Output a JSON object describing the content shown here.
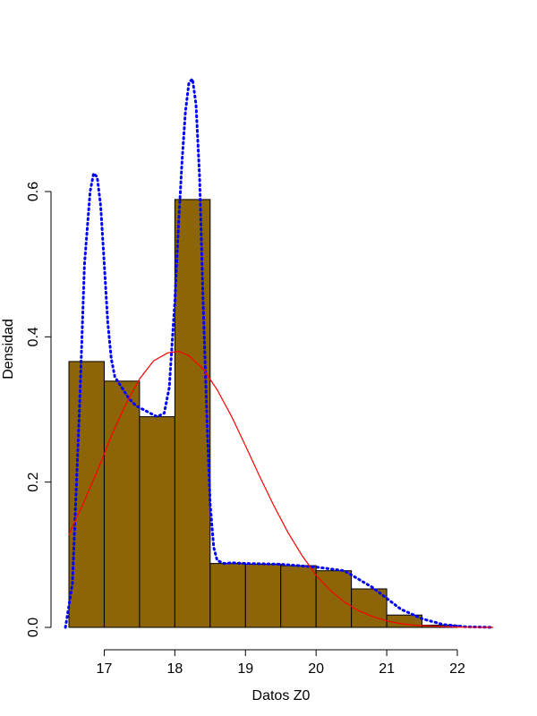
{
  "chart_data": {
    "type": "bar",
    "title": "",
    "xlabel": "Datos Z0",
    "ylabel": "Densidad",
    "xlim": [
      16.4,
      22.5
    ],
    "ylim": [
      0,
      0.75
    ],
    "x_ticks": [
      17,
      18,
      19,
      20,
      21,
      22
    ],
    "y_ticks": [
      0.0,
      0.2,
      0.4,
      0.6
    ],
    "y_tick_labels": [
      "0.0",
      "0.2",
      "0.4",
      "0.6"
    ],
    "grid": false,
    "legend": null,
    "bins": [
      {
        "x0": 16.5,
        "x1": 17.0,
        "density": 0.366
      },
      {
        "x0": 17.0,
        "x1": 17.5,
        "density": 0.339
      },
      {
        "x0": 17.5,
        "x1": 18.0,
        "density": 0.29
      },
      {
        "x0": 18.0,
        "x1": 18.5,
        "density": 0.589
      },
      {
        "x0": 18.5,
        "x1": 19.0,
        "density": 0.088
      },
      {
        "x0": 19.0,
        "x1": 19.5,
        "density": 0.087
      },
      {
        "x0": 19.5,
        "x1": 20.0,
        "density": 0.085
      },
      {
        "x0": 20.0,
        "x1": 20.5,
        "density": 0.078
      },
      {
        "x0": 20.5,
        "x1": 21.0,
        "density": 0.053
      },
      {
        "x0": 21.0,
        "x1": 21.5,
        "density": 0.017
      },
      {
        "x0": 21.5,
        "x1": 22.0,
        "density": 0.003
      }
    ],
    "series": [
      {
        "style": "dotted",
        "color": "#0000ff",
        "x": [
          16.45,
          16.55,
          16.65,
          16.72,
          16.8,
          16.85,
          16.9,
          16.95,
          17.0,
          17.05,
          17.1,
          17.15,
          17.25,
          17.35,
          17.45,
          17.55,
          17.65,
          17.75,
          17.85,
          17.92,
          18.0,
          18.05,
          18.1,
          18.15,
          18.2,
          18.25,
          18.3,
          18.35,
          18.4,
          18.45,
          18.5,
          18.55,
          18.6,
          18.7,
          18.8,
          19.0,
          19.5,
          20.0,
          20.4,
          20.8,
          21.2,
          21.5,
          21.8,
          22.1,
          22.5
        ],
        "y": [
          0.0,
          0.06,
          0.3,
          0.5,
          0.6,
          0.625,
          0.62,
          0.58,
          0.5,
          0.42,
          0.37,
          0.345,
          0.33,
          0.315,
          0.305,
          0.3,
          0.295,
          0.29,
          0.295,
          0.33,
          0.45,
          0.55,
          0.64,
          0.71,
          0.75,
          0.755,
          0.72,
          0.62,
          0.45,
          0.3,
          0.17,
          0.11,
          0.092,
          0.088,
          0.089,
          0.088,
          0.087,
          0.083,
          0.078,
          0.055,
          0.025,
          0.012,
          0.004,
          0.001,
          0.0
        ]
      },
      {
        "style": "solid",
        "color": "#ff0000",
        "x": [
          16.5,
          16.7,
          16.9,
          17.1,
          17.3,
          17.5,
          17.7,
          17.9,
          18.05,
          18.2,
          18.4,
          18.6,
          18.8,
          19.0,
          19.2,
          19.4,
          19.6,
          19.8,
          20.0,
          20.2,
          20.4,
          20.6,
          20.8,
          21.0,
          21.2,
          21.4,
          21.6,
          21.8,
          22.0,
          22.2,
          22.5
        ],
        "y": [
          0.128,
          0.17,
          0.215,
          0.263,
          0.306,
          0.342,
          0.367,
          0.378,
          0.38,
          0.374,
          0.356,
          0.327,
          0.291,
          0.25,
          0.208,
          0.168,
          0.131,
          0.099,
          0.072,
          0.051,
          0.035,
          0.023,
          0.015,
          0.009,
          0.005,
          0.003,
          0.002,
          0.001,
          0.0005,
          0.0002,
          0.0
        ]
      }
    ],
    "colors": {
      "bar_fill": "#8b6508",
      "bar_stroke": "#000000"
    }
  }
}
